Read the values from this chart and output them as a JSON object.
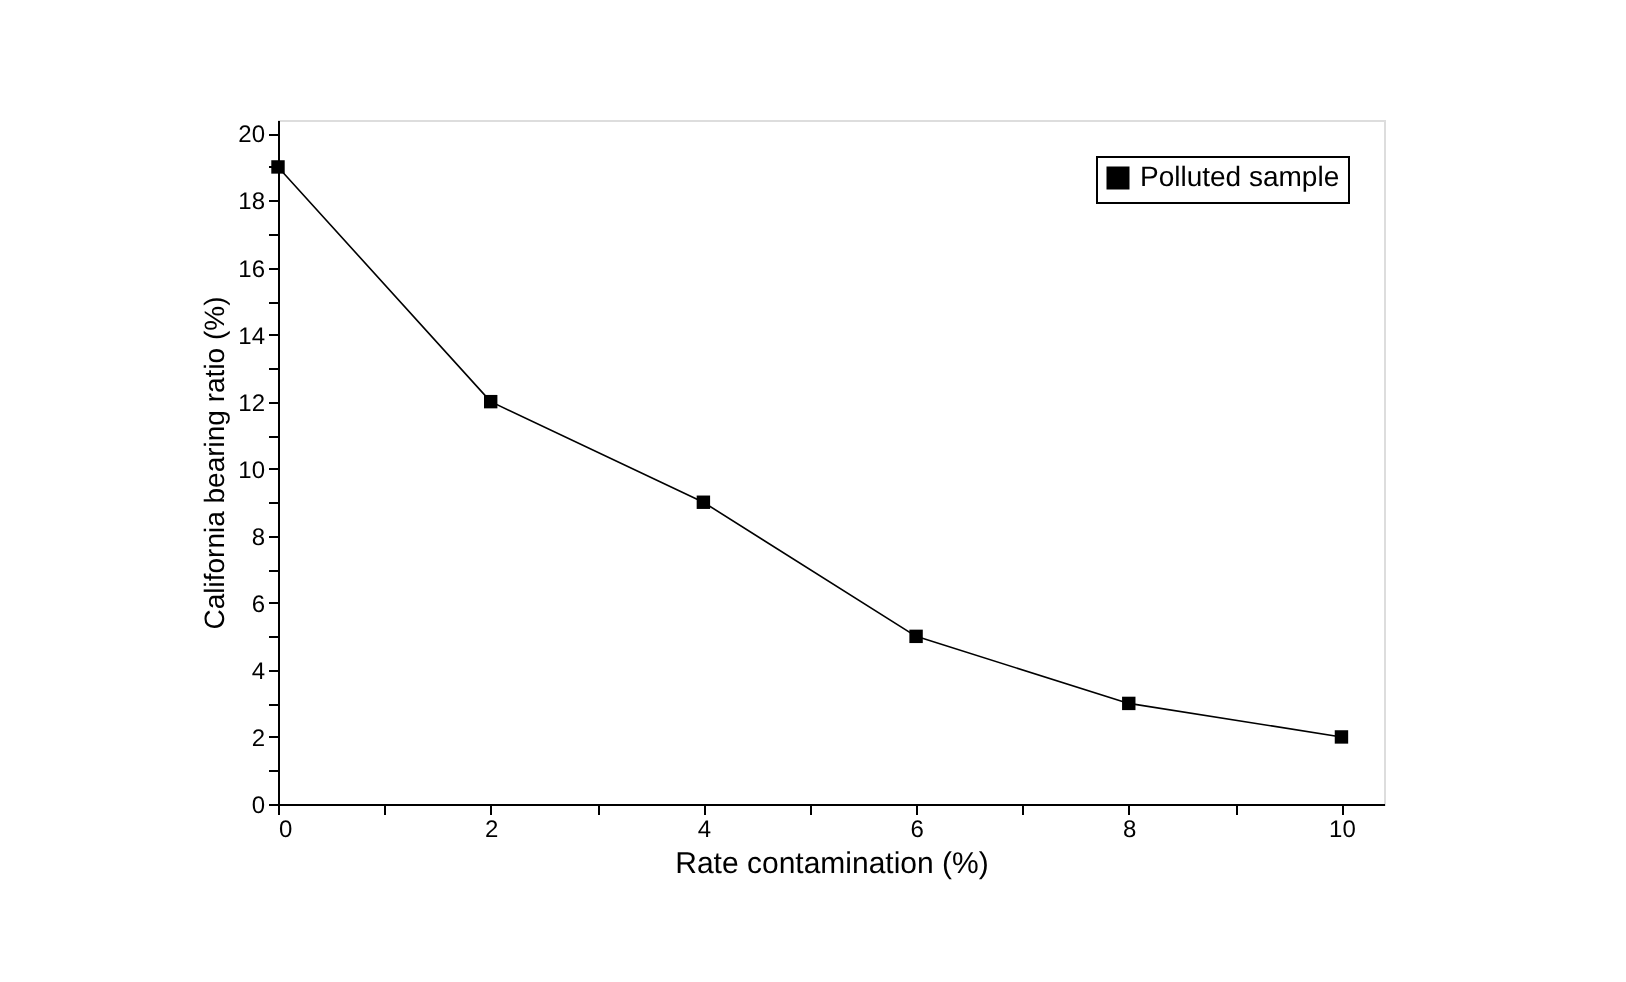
{
  "chart_data": {
    "type": "line",
    "xlabel": "Rate contamination (%)",
    "ylabel": "California bearing ratio (%)",
    "x": [
      0,
      2,
      4,
      6,
      8,
      10
    ],
    "series": [
      {
        "name": "Polluted sample",
        "color": "#000000",
        "values": [
          19,
          12,
          9,
          5,
          3,
          2
        ]
      }
    ],
    "xlim": [
      0,
      10.4
    ],
    "ylim": [
      0,
      20.4
    ],
    "xticks": [
      0,
      {
        "value": 1,
        "label": null
      },
      2,
      {
        "value": 3,
        "label": null
      },
      4,
      {
        "value": 5,
        "label": null
      },
      6,
      {
        "value": 7,
        "label": null
      },
      8,
      {
        "value": 9,
        "label": null
      },
      10
    ],
    "yticks": [
      0,
      {
        "value": 1,
        "label": null
      },
      2,
      {
        "value": 3,
        "label": null
      },
      4,
      {
        "value": 5,
        "label": null
      },
      6,
      {
        "value": 7,
        "label": null
      },
      8,
      {
        "value": 9,
        "label": null
      },
      10,
      {
        "value": 11,
        "label": null
      },
      12,
      {
        "value": 13,
        "label": null
      },
      14,
      {
        "value": 15,
        "label": null
      },
      16,
      {
        "value": 17,
        "label": null
      },
      18,
      {
        "value": 19,
        "label": null
      },
      20
    ],
    "marker": "square",
    "line_style": "solid",
    "grid": false,
    "legend": "top right"
  }
}
